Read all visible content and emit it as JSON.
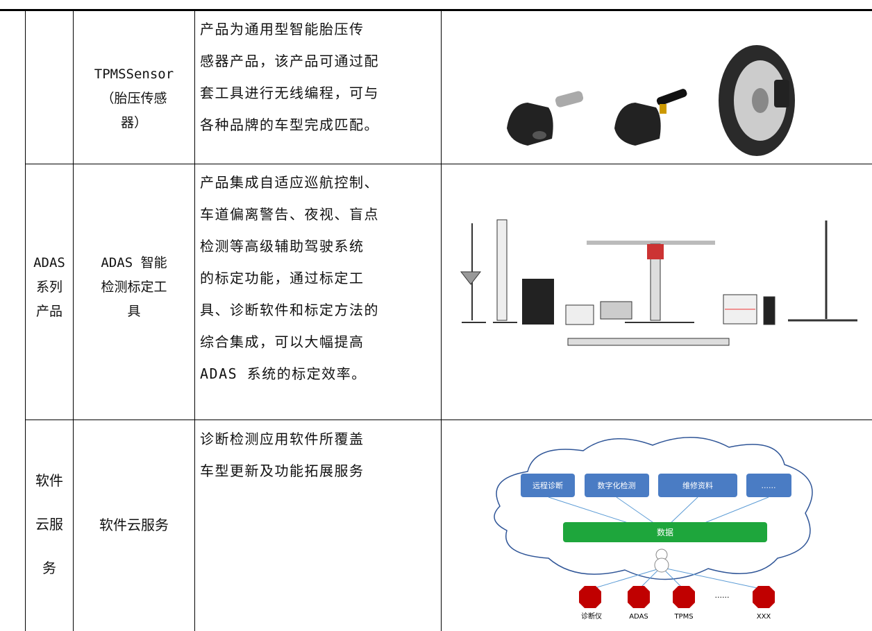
{
  "table": {
    "rows": [
      {
        "category": [],
        "product": [
          "TPMSSensor",
          "（胎压传感",
          "器）"
        ],
        "description": [
          "产品为通用型智能胎压传",
          "感器产品，该产品可通过配",
          "套工具进行无线编程，可与",
          "各种品牌的车型完成匹配。"
        ]
      },
      {
        "category": [
          "ADAS",
          "系列",
          "产品"
        ],
        "product": [
          "ADAS 智能",
          "检测标定工",
          "具"
        ],
        "description": [
          "产品集成自适应巡航控制、",
          "车道偏离警告、夜视、盲点",
          "检测等高级辅助驾驶系统",
          "的标定功能，通过标定工",
          "具、诊断软件和标定方法的",
          "综合集成，可以大幅提高",
          "ADAS 系统的标定效率。"
        ]
      },
      {
        "category": [
          "软件",
          "云服",
          "务"
        ],
        "product": [
          "软件云服务"
        ],
        "description": [
          "诊断检测应用软件所覆盖",
          "车型更新及功能拓展服务"
        ]
      }
    ]
  },
  "diagram": {
    "services": [
      "远程诊断",
      "数字化检测",
      "维修资料",
      "......"
    ],
    "data": "数据",
    "devices": [
      "诊断仪",
      "ADAS",
      "TPMS",
      "XXX"
    ],
    "more": "......"
  }
}
